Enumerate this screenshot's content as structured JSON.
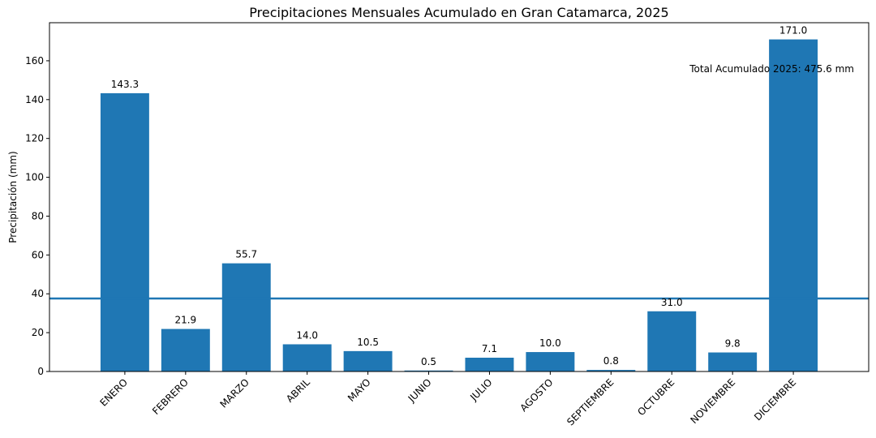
{
  "chart_data": {
    "type": "bar",
    "title": "Precipitaciones Mensuales Acumulado en Gran Catamarca, 2025",
    "xlabel": "",
    "ylabel": "Precipitación (mm)",
    "categories": [
      "ENERO",
      "FEBRERO",
      "MARZO",
      "ABRIL",
      "MAYO",
      "JUNIO",
      "JULIO",
      "AGOSTO",
      "SEPTIEMBRE",
      "OCTUBRE",
      "NOVIEMBRE",
      "DICIEMBRE"
    ],
    "values": [
      143.3,
      21.9,
      55.7,
      14.0,
      10.5,
      0.5,
      7.1,
      10.0,
      0.8,
      31.0,
      9.8,
      171.0
    ],
    "value_labels": [
      "143.3",
      "21.9",
      "55.7",
      "14.0",
      "10.5",
      "0.5",
      "7.1",
      "10.0",
      "0.8",
      "31.0",
      "9.8",
      "171.0"
    ],
    "yticks": [
      0,
      20,
      40,
      60,
      80,
      100,
      120,
      140,
      160
    ],
    "ylim": [
      0,
      179.6
    ],
    "reference_line": {
      "value": 37.6
    },
    "annotation": "Total Acumulado 2025: 475.6 mm",
    "colors": {
      "bar": "#1f77b4",
      "line": "#1f77b4",
      "axis": "#000000"
    },
    "grid": false
  }
}
